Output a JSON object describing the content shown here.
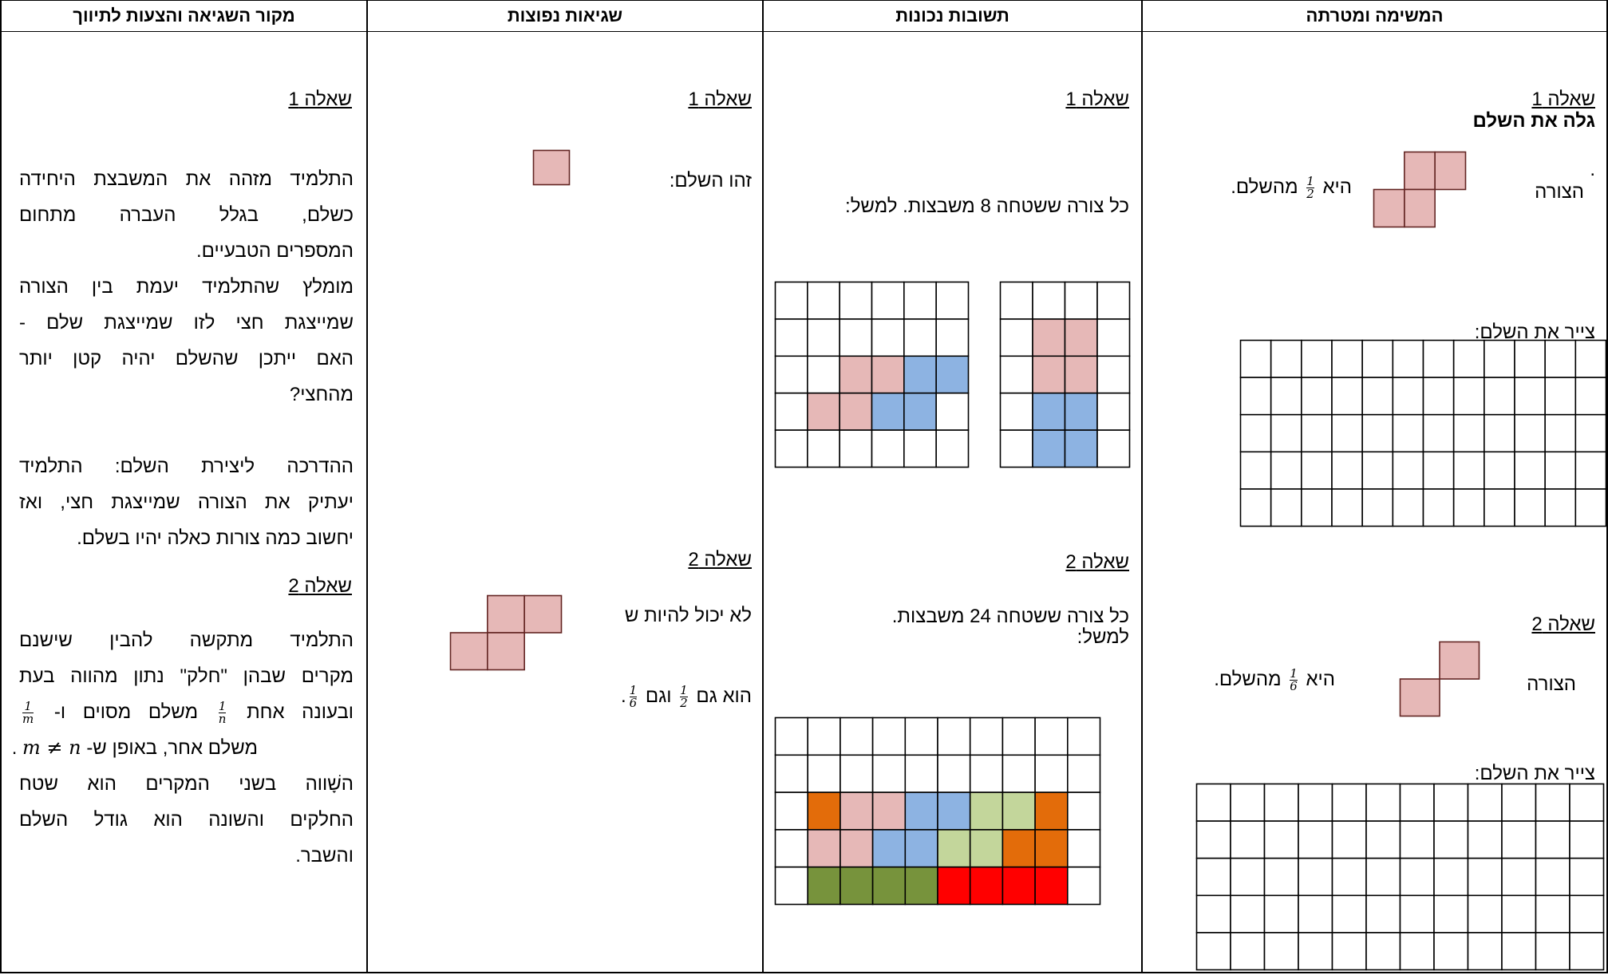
{
  "headers": {
    "col1": "המשימה ומטרתה",
    "col2": "תשובות נכונות",
    "col3": "שגיאות נפוצות",
    "col4": "מקור השגיאה והצעות לתיווך"
  },
  "colors": {
    "pink": "#e6b8b7",
    "blue": "#8db3e2",
    "light_green": "#c3d69b",
    "orange": "#e36c0a",
    "olive": "#77933c",
    "red": "#ff0000",
    "pink_border": "#632523"
  },
  "col1": {
    "q1_title": "שאלה 1",
    "q1_subtitle": "גלה את השלם",
    "q1_dot": ".",
    "q1_shape_label": "הצורה",
    "q1_is": "היא",
    "q1_frac_num": "1",
    "q1_frac_den": "2",
    "q1_of_whole": "מהשלם.",
    "q1_draw": "צייר את השלם:",
    "q2_title": "שאלה 2",
    "q2_shape_label": "הצורה",
    "q2_is": "היא",
    "q2_frac_num": "1",
    "q2_frac_den": "6",
    "q2_of_whole": "מהשלם.",
    "q2_draw": "צייר את השלם:"
  },
  "col2": {
    "q1_title": "שאלה 1",
    "q1_text": "כל צורה ששטחה 8 משבצות. למשל:",
    "q2_title": "שאלה 2",
    "q2_text": "כל צורה ששטחה 24 משבצות.",
    "q2_text2": "למשל:"
  },
  "col3": {
    "q1_title": "שאלה 1",
    "q1_text": "זהו השלם:",
    "q2_title": "שאלה 2",
    "q2_text": "לא יכול להיות ש",
    "q2_is_also": "הוא גם",
    "q2_frac1_num": "1",
    "q2_frac1_den": "2",
    "q2_and_also": "וגם",
    "q2_frac2_num": "1",
    "q2_frac2_den": "6",
    "q2_dot": "."
  },
  "col4": {
    "q1_title": "שאלה 1",
    "p1": [
      "התלמיד מזהה את המשבצת היחידה",
      "כשלם, בגלל העברה מתחום",
      "המספרים הטבעיים."
    ],
    "p2": [
      "מומלץ שהתלמיד יעמת בין הצורה",
      "שמייצגת חצי לזו שמייצגת שלם -",
      "האם ייתכן שהשלם יהיה קטן יותר",
      "מהחצי?"
    ],
    "p3": [
      "ההדרכה ליצירת השלם: התלמיד",
      "יעתיק את הצורה שמייצגת חצי, ואז",
      "יחשוב כמה צורות כאלה יהיו בשלם."
    ],
    "q2_title": "שאלה 2",
    "p4_line1": "התלמיד מתקשה להבין שישנם",
    "p4_line2": "מקרים שבהן \"חלק\" נתון מהווה בעת",
    "p4_line3_a": "ובעונה אחת",
    "p4_frac_n_num": "1",
    "p4_frac_n_den": "n",
    "p4_line3_b": "משלם מסוים ו-",
    "p4_frac_m_num": "1",
    "p4_frac_m_den": "m",
    "p4_line4_a": "משלם אחר, באופן ש-",
    "p4_line4_math": "m ≠ n",
    "p4_line4_dot": ".",
    "p5": [
      "השָׁווה בשני המקרים הוא שטח",
      "החלקים והשונה הוא גודל השלם",
      "והשבר."
    ]
  }
}
